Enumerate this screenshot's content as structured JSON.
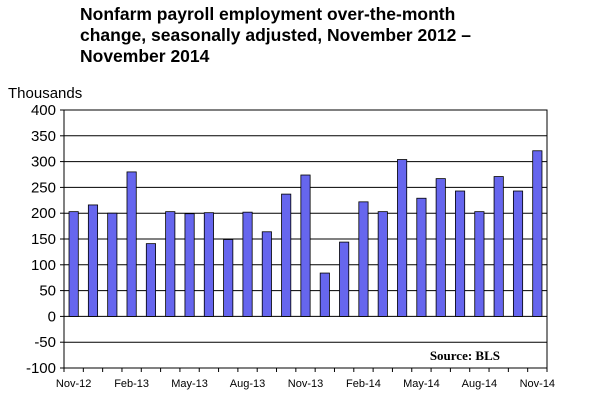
{
  "chart_data": {
    "type": "bar",
    "title": "Nonfarm payroll employment over-the-month change, seasonally adjusted, November 2012 – November 2014",
    "ylabel": "Thousands",
    "ylim": [
      -100,
      400
    ],
    "yticks": [
      -100,
      -50,
      0,
      50,
      100,
      150,
      200,
      250,
      300,
      350,
      400
    ],
    "grid": true,
    "annotation": "Source: BLS",
    "bar_color": "#6666ee",
    "bar_edge_color": "#000000",
    "categories": [
      "Nov-12",
      "Dec-12",
      "Jan-13",
      "Feb-13",
      "Mar-13",
      "Apr-13",
      "May-13",
      "Jun-13",
      "Jul-13",
      "Aug-13",
      "Sep-13",
      "Oct-13",
      "Nov-13",
      "Dec-13",
      "Jan-14",
      "Feb-14",
      "Mar-14",
      "Apr-14",
      "May-14",
      "Jun-14",
      "Jul-14",
      "Aug-14",
      "Sep-14",
      "Oct-14",
      "Nov-14"
    ],
    "x_tick_labels": [
      "Nov-12",
      "Feb-13",
      "May-13",
      "Aug-13",
      "Nov-13",
      "Feb-14",
      "May-14",
      "Aug-14",
      "Nov-14"
    ],
    "values": [
      203,
      216,
      200,
      280,
      141,
      203,
      199,
      201,
      149,
      202,
      164,
      237,
      274,
      84,
      144,
      222,
      203,
      304,
      229,
      267,
      243,
      203,
      271,
      243,
      321
    ]
  }
}
